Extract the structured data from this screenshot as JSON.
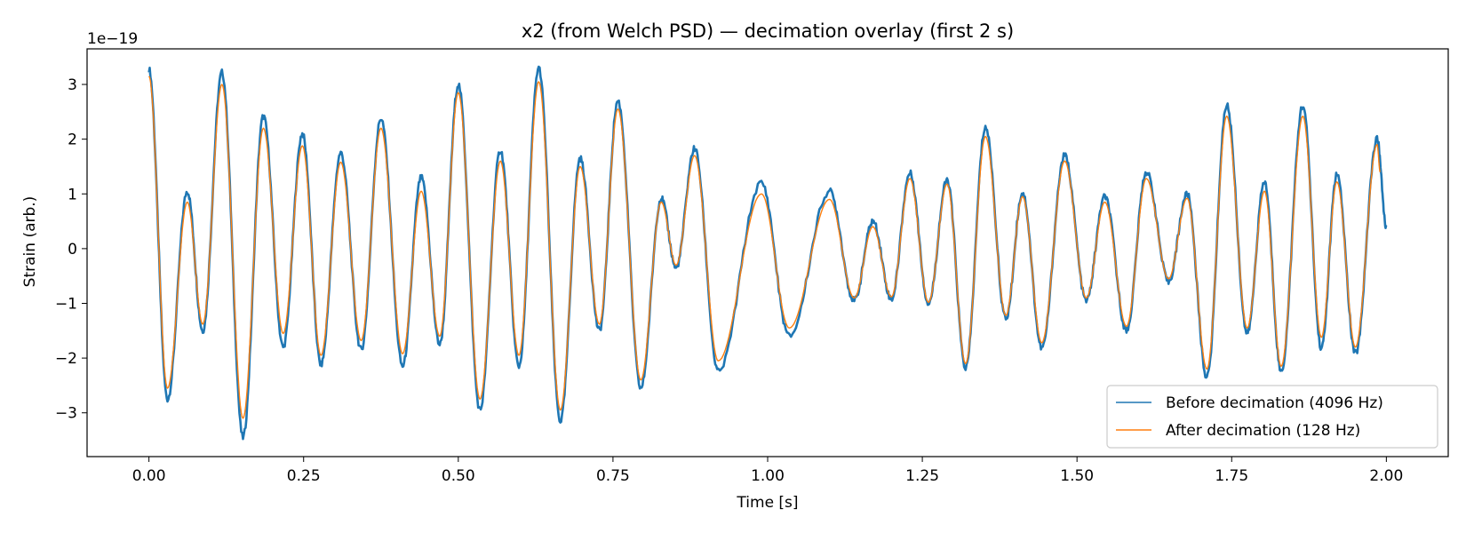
{
  "chart_data": {
    "type": "line",
    "title": "x2 (from Welch PSD) — decimation overlay (first 2 s)",
    "xlabel": "Time [s]",
    "ylabel": "Strain (arb.)",
    "y_offset_label": "1e−19",
    "xlim": [
      -0.1,
      2.1
    ],
    "ylim": [
      -3.8,
      3.65
    ],
    "x_ticks": [
      0.0,
      0.25,
      0.5,
      0.75,
      1.0,
      1.25,
      1.5,
      1.75,
      2.0
    ],
    "x_tick_labels": [
      "0.00",
      "0.25",
      "0.50",
      "0.75",
      "1.00",
      "1.25",
      "1.50",
      "1.75",
      "2.00"
    ],
    "y_ticks": [
      -3,
      -2,
      -1,
      0,
      1,
      2,
      3
    ],
    "y_tick_labels": [
      "−3",
      "−2",
      "−1",
      "0",
      "1",
      "2",
      "3"
    ],
    "grid": false,
    "legend_position": "lower-right",
    "series": [
      {
        "name": "Before decimation (4096 Hz)",
        "color": "#1f77b4",
        "x": [
          0.0,
          0.03,
          0.062,
          0.087,
          0.118,
          0.152,
          0.185,
          0.217,
          0.248,
          0.278,
          0.31,
          0.343,
          0.375,
          0.41,
          0.44,
          0.47,
          0.5,
          0.535,
          0.568,
          0.598,
          0.63,
          0.665,
          0.697,
          0.728,
          0.758,
          0.795,
          0.828,
          0.852,
          0.882,
          0.92,
          0.99,
          1.035,
          1.1,
          1.14,
          1.17,
          1.2,
          1.23,
          1.26,
          1.29,
          1.32,
          1.352,
          1.385,
          1.412,
          1.443,
          1.48,
          1.515,
          1.545,
          1.58,
          1.612,
          1.648,
          1.678,
          1.71,
          1.742,
          1.775,
          1.803,
          1.83,
          1.865,
          1.895,
          1.92,
          1.95,
          1.985,
          2.0
        ],
        "values": [
          3.28,
          -2.75,
          1.05,
          -1.5,
          3.22,
          -3.45,
          2.42,
          -1.8,
          2.1,
          -2.12,
          1.75,
          -1.85,
          2.38,
          -2.15,
          1.3,
          -1.75,
          3.0,
          -2.95,
          1.8,
          -2.15,
          3.3,
          -3.15,
          1.65,
          -1.5,
          2.7,
          -2.55,
          0.92,
          -0.35,
          1.83,
          -2.25,
          1.2,
          -1.6,
          1.05,
          -0.95,
          0.5,
          -0.92,
          1.38,
          -1.0,
          1.25,
          -2.18,
          2.22,
          -1.28,
          1.02,
          -1.82,
          1.7,
          -0.95,
          0.95,
          -1.5,
          1.4,
          -0.6,
          1.0,
          -2.35,
          2.62,
          -1.55,
          1.22,
          -2.25,
          2.62,
          -1.82,
          1.35,
          -1.92,
          2.0,
          0.4
        ]
      },
      {
        "name": "After decimation (128 Hz)",
        "color": "#ff7f0e",
        "x": [
          0.0,
          0.03,
          0.062,
          0.087,
          0.118,
          0.152,
          0.185,
          0.217,
          0.248,
          0.278,
          0.31,
          0.343,
          0.375,
          0.41,
          0.44,
          0.47,
          0.5,
          0.535,
          0.568,
          0.598,
          0.63,
          0.665,
          0.697,
          0.728,
          0.758,
          0.795,
          0.828,
          0.852,
          0.882,
          0.92,
          0.99,
          1.035,
          1.1,
          1.14,
          1.17,
          1.2,
          1.23,
          1.26,
          1.29,
          1.32,
          1.352,
          1.385,
          1.412,
          1.443,
          1.48,
          1.515,
          1.545,
          1.58,
          1.612,
          1.648,
          1.678,
          1.71,
          1.742,
          1.775,
          1.803,
          1.83,
          1.865,
          1.895,
          1.92,
          1.95,
          1.985,
          1.99
        ],
        "values": [
          3.15,
          -2.55,
          0.85,
          -1.38,
          3.0,
          -3.1,
          2.2,
          -1.55,
          1.88,
          -1.95,
          1.58,
          -1.68,
          2.2,
          -1.92,
          1.05,
          -1.6,
          2.85,
          -2.75,
          1.6,
          -1.95,
          3.05,
          -2.95,
          1.5,
          -1.38,
          2.55,
          -2.4,
          0.85,
          -0.3,
          1.7,
          -2.05,
          1.0,
          -1.45,
          0.9,
          -0.9,
          0.4,
          -0.88,
          1.28,
          -0.98,
          1.18,
          -2.1,
          2.05,
          -1.22,
          0.95,
          -1.72,
          1.6,
          -0.9,
          0.85,
          -1.42,
          1.28,
          -0.55,
          0.92,
          -2.2,
          2.42,
          -1.45,
          1.05,
          -2.15,
          2.42,
          -1.62,
          1.22,
          -1.8,
          1.9,
          1.4
        ]
      }
    ]
  }
}
